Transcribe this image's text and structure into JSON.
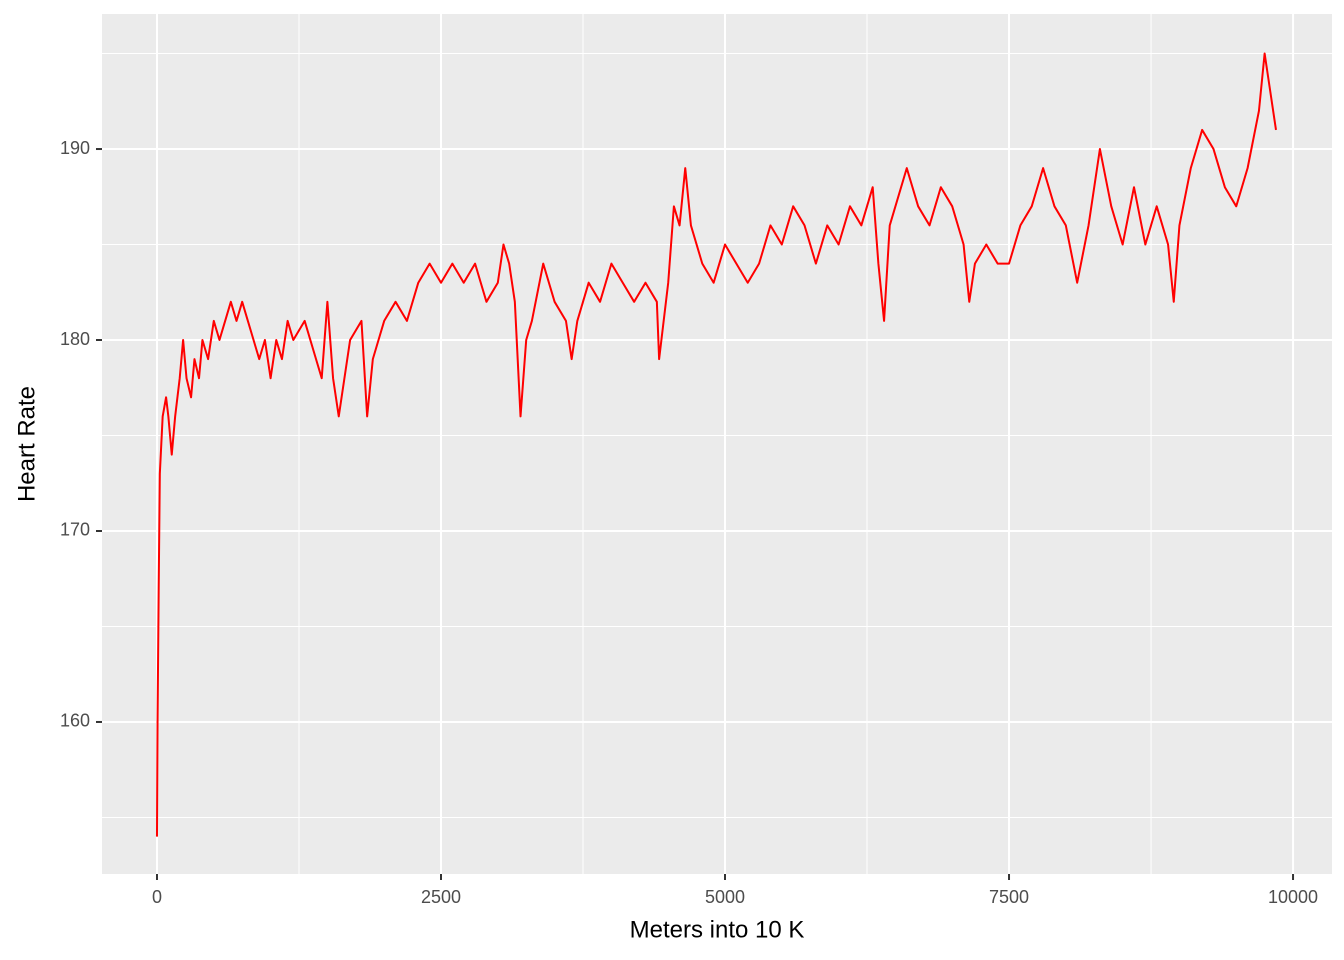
{
  "chart_data": {
    "type": "line",
    "x_label": "Meters into 10 K",
    "y_label": "Heart Rate",
    "xlim": [
      -484,
      10343
    ],
    "ylim": [
      152.04,
      197.07
    ],
    "xticks": [
      0,
      2500,
      5000,
      7500,
      10000
    ],
    "yticks": [
      160,
      170,
      180,
      190
    ],
    "grid": true,
    "x": [
      0,
      5,
      15,
      25,
      50,
      80,
      100,
      130,
      160,
      200,
      230,
      260,
      300,
      330,
      370,
      400,
      450,
      500,
      550,
      600,
      650,
      700,
      750,
      800,
      850,
      900,
      950,
      1000,
      1050,
      1100,
      1150,
      1200,
      1300,
      1400,
      1450,
      1500,
      1550,
      1600,
      1700,
      1800,
      1850,
      1900,
      2000,
      2100,
      2200,
      2300,
      2400,
      2500,
      2600,
      2700,
      2800,
      2900,
      3000,
      3050,
      3100,
      3150,
      3200,
      3250,
      3300,
      3400,
      3500,
      3600,
      3650,
      3700,
      3800,
      3900,
      4000,
      4100,
      4200,
      4300,
      4400,
      4420,
      4500,
      4550,
      4600,
      4650,
      4700,
      4800,
      4900,
      5000,
      5100,
      5200,
      5300,
      5400,
      5500,
      5600,
      5700,
      5800,
      5900,
      6000,
      6100,
      6200,
      6300,
      6350,
      6400,
      6450,
      6500,
      6600,
      6700,
      6800,
      6900,
      7000,
      7100,
      7150,
      7200,
      7300,
      7400,
      7500,
      7600,
      7700,
      7800,
      7900,
      8000,
      8100,
      8200,
      8300,
      8400,
      8500,
      8600,
      8700,
      8800,
      8900,
      8950,
      9000,
      9100,
      9200,
      9300,
      9400,
      9500,
      9600,
      9700,
      9750,
      9800,
      9850
    ],
    "series": [
      {
        "name": "Heart Rate",
        "color": "#ff0000",
        "values": [
          154,
          160,
          167,
          173,
          176,
          177,
          176,
          174,
          176,
          178,
          180,
          178,
          177,
          179,
          178,
          180,
          179,
          181,
          180,
          181,
          182,
          181,
          182,
          181,
          180,
          179,
          180,
          178,
          180,
          179,
          181,
          180,
          181,
          179,
          178,
          182,
          178,
          176,
          180,
          181,
          176,
          179,
          181,
          182,
          181,
          183,
          184,
          183,
          184,
          183,
          184,
          182,
          183,
          185,
          184,
          182,
          176,
          180,
          181,
          184,
          182,
          181,
          179,
          181,
          183,
          182,
          184,
          183,
          182,
          183,
          182,
          179,
          183,
          187,
          186,
          189,
          186,
          184,
          183,
          185,
          184,
          183,
          184,
          186,
          185,
          187,
          186,
          184,
          186,
          185,
          187,
          186,
          188,
          184,
          181,
          186,
          187,
          189,
          187,
          186,
          188,
          187,
          185,
          182,
          184,
          185,
          184,
          184,
          186,
          187,
          189,
          187,
          186,
          183,
          186,
          190,
          187,
          185,
          188,
          185,
          187,
          185,
          182,
          186,
          189,
          191,
          190,
          188,
          187,
          189,
          192,
          195,
          193,
          191
        ]
      }
    ]
  }
}
